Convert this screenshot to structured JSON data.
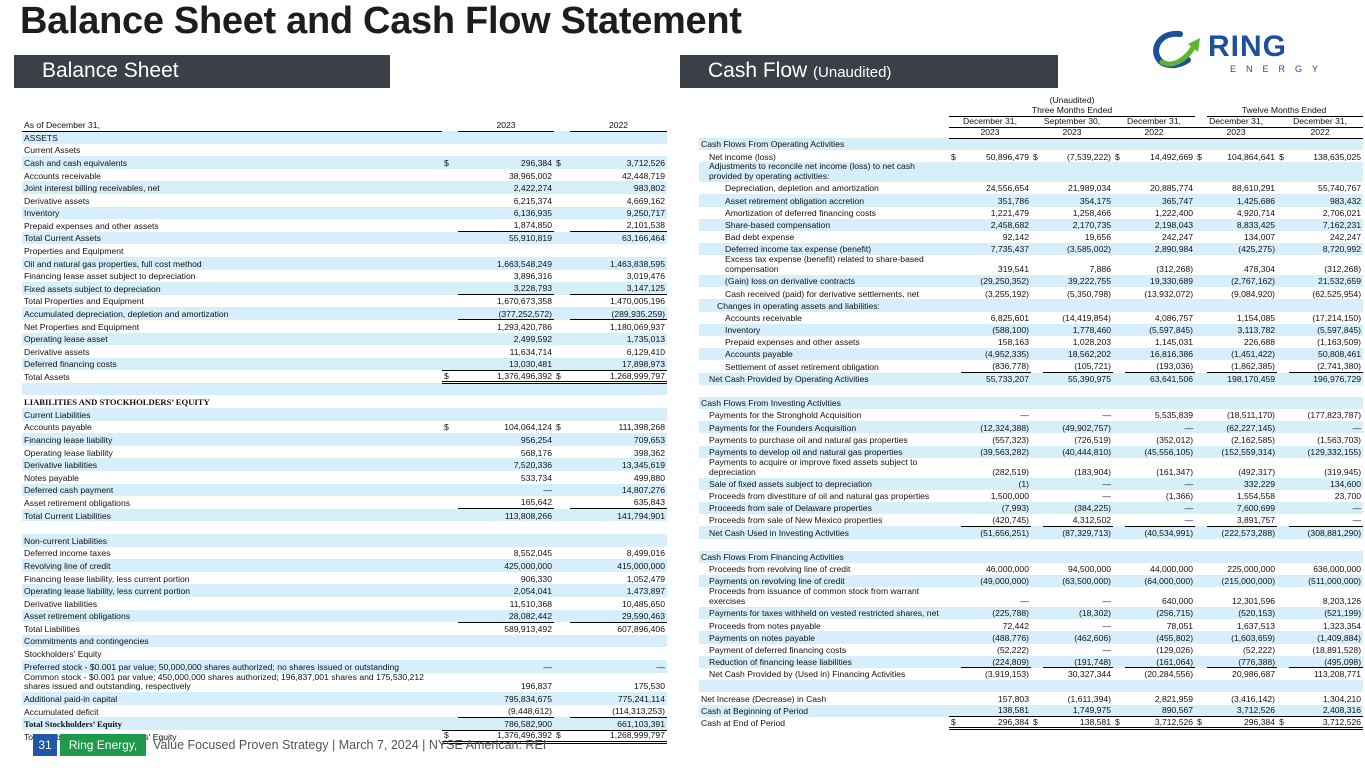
{
  "title": "Balance Sheet and Cash Flow Statement",
  "logo": {
    "text": "RING",
    "subtext": "ENERGY",
    "colors": {
      "blue": "#1f4e9c",
      "green": "#5cb531"
    }
  },
  "sections": {
    "balance_sheet": "Balance Sheet",
    "cash_flow": "Cash Flow",
    "cash_flow_note": "(Unaudited)"
  },
  "footer": {
    "page": "31",
    "company": "Ring Energy, Inc.",
    "tagline": "Value Focused Proven Strategy  | March 7, 2024 |  NYSE American: REI"
  },
  "balance_sheet": {
    "header": {
      "label": "As of December 31,",
      "years": [
        "2023",
        "2022"
      ]
    },
    "rows": [
      {
        "label": "ASSETS"
      },
      {
        "label": "Current Assets"
      },
      {
        "label": "Cash and cash equivalents",
        "values": [
          "296,384",
          "3,712,526"
        ],
        "dollar": true
      },
      {
        "label": "Accounts receivable",
        "values": [
          "38,965,002",
          "42,448,719"
        ]
      },
      {
        "label": "Joint interest billing receivables, net",
        "values": [
          "2,422,274",
          "983,802"
        ]
      },
      {
        "label": "Derivative assets",
        "values": [
          "6,215,374",
          "4,669,162"
        ]
      },
      {
        "label": "Inventory",
        "values": [
          "6,136,935",
          "9,250,717"
        ]
      },
      {
        "label": "Prepaid expenses and other assets",
        "values": [
          "1,874,850",
          "2,101,538"
        ]
      },
      {
        "label": "Total Current Assets",
        "values": [
          "55,910,819",
          "63,166,464"
        ],
        "kind": "total"
      },
      {
        "label": "Properties and Equipment"
      },
      {
        "label": "Oil and natural gas properties, full cost method",
        "values": [
          "1,663,548,249",
          "1,463,838,595"
        ]
      },
      {
        "label": "Financing lease asset subject to depreciation",
        "values": [
          "3,896,316",
          "3,019,476"
        ]
      },
      {
        "label": "Fixed assets subject to depreciation",
        "values": [
          "3,228,793",
          "3,147,125"
        ]
      },
      {
        "label": "Total Properties and Equipment",
        "values": [
          "1,670,673,358",
          "1,470,005,196"
        ],
        "kind": "total"
      },
      {
        "label": "Accumulated depreciation, depletion and amortization",
        "values": [
          "(377,252,572)",
          "(289,935,259)"
        ]
      },
      {
        "label": "Net Properties and Equipment",
        "values": [
          "1,293,420,786",
          "1,180,069,937"
        ],
        "kind": "total"
      },
      {
        "label": "Operating lease asset",
        "values": [
          "2,499,592",
          "1,735,013"
        ]
      },
      {
        "label": "Derivative assets",
        "values": [
          "11,634,714",
          "6,129,410"
        ]
      },
      {
        "label": "Deferred financing costs",
        "values": [
          "13,030,481",
          "17,898,973"
        ]
      },
      {
        "label": "Total Assets",
        "values": [
          "1,376,496,392",
          "1,268,999,797"
        ],
        "dollar": true,
        "kind": "grand"
      },
      {
        "label": ""
      },
      {
        "label": "LIABILITIES AND STOCKHOLDERS’ EQUITY",
        "kind": "serif"
      },
      {
        "label": "Current Liabilities"
      },
      {
        "label": "Accounts payable",
        "values": [
          "104,064,124",
          "111,398,268"
        ],
        "dollar": true
      },
      {
        "label": "Financing lease liability",
        "values": [
          "956,254",
          "709,653"
        ]
      },
      {
        "label": "Operating lease liability",
        "values": [
          "568,176",
          "398,362"
        ]
      },
      {
        "label": "Derivative liabilities",
        "values": [
          "7,520,336",
          "13,345,619"
        ]
      },
      {
        "label": "Notes payable",
        "values": [
          "533,734",
          "499,880"
        ]
      },
      {
        "label": "Deferred cash payment",
        "values": [
          "—",
          "14,807,276"
        ]
      },
      {
        "label": "Asset retirement obligations",
        "values": [
          "165,642",
          "635,843"
        ]
      },
      {
        "label": "Total Current Liabilities",
        "values": [
          "113,808,266",
          "141,794,901"
        ],
        "kind": "total"
      },
      {
        "label": ""
      },
      {
        "label": "Non-current Liabilities"
      },
      {
        "label": "Deferred income taxes",
        "values": [
          "8,552,045",
          "8,499,016"
        ]
      },
      {
        "label": "Revolving line of credit",
        "values": [
          "425,000,000",
          "415,000,000"
        ]
      },
      {
        "label": "Financing lease liability, less current portion",
        "values": [
          "906,330",
          "1,052,479"
        ]
      },
      {
        "label": "Operating lease liability, less current portion",
        "values": [
          "2,054,041",
          "1,473,897"
        ]
      },
      {
        "label": "Derivative liabilities",
        "values": [
          "11,510,368",
          "10,485,650"
        ]
      },
      {
        "label": "Asset retirement obligations",
        "values": [
          "28,082,442",
          "29,590,463"
        ]
      },
      {
        "label": "Total Liabilities",
        "values": [
          "589,913,492",
          "607,896,406"
        ],
        "kind": "total"
      },
      {
        "label": "Commitments and contingencies"
      },
      {
        "label": "Stockholders' Equity"
      },
      {
        "label": "Preferred stock - $0.001 par value; 50,000,000 shares authorized; no shares issued or outstanding",
        "values": [
          "—",
          "—"
        ]
      },
      {
        "label": "Common stock - $0.001 par value; 450,000,000 shares authorized; 196,837,001 shares and 175,530,212 shares issued and outstanding, respectively",
        "values": [
          "196,837",
          "175,530"
        ]
      },
      {
        "label": "Additional paid-in capital",
        "values": [
          "795,834,675",
          "775,241,114"
        ]
      },
      {
        "label": "Accumulated deficit",
        "values": [
          "(9,448,612)",
          "(114,313,253)"
        ]
      },
      {
        "label": "Total Stockholders’ Equity",
        "values": [
          "786,582,900",
          "661,103,391"
        ],
        "kind": "total-serif"
      },
      {
        "label": "Total Liabilities and Stockholders' Equity",
        "values": [
          "1,376,496,392",
          "1,268,999,797"
        ],
        "dollar": true,
        "kind": "grand"
      }
    ]
  },
  "cash_flow": {
    "header": {
      "unaudited": "(Unaudited)",
      "groups": [
        "Three Months Ended",
        "Twelve Months Ended"
      ],
      "periods": [
        "December 31,",
        "September 30,",
        "December 31,",
        "December 31,",
        "December 31,"
      ],
      "years": [
        "2023",
        "2023",
        "2022",
        "2023",
        "2022"
      ]
    },
    "rows": [
      {
        "label": "Cash Flows From Operating Activities",
        "level": 0
      },
      {
        "label": "Net income (loss)",
        "level": 1,
        "dollar": true,
        "values": [
          "50,896,479",
          "(7,539,222)",
          "14,492,669",
          "104,864,641",
          "138,635,025"
        ]
      },
      {
        "label": "Adjustments to reconcile net income (loss) to net cash provided by operating activities:",
        "level": 1
      },
      {
        "label": "Depreciation, depletion and amortization",
        "level": 3,
        "values": [
          "24,556,654",
          "21,989,034",
          "20,885,774",
          "88,610,291",
          "55,740,767"
        ]
      },
      {
        "label": "Asset retirement obligation accretion",
        "level": 3,
        "values": [
          "351,786",
          "354,175",
          "365,747",
          "1,425,686",
          "983,432"
        ]
      },
      {
        "label": "Amortization of deferred financing costs",
        "level": 3,
        "values": [
          "1,221,479",
          "1,258,466",
          "1,222,400",
          "4,920,714",
          "2,706,021"
        ]
      },
      {
        "label": "Share-based compensation",
        "level": 3,
        "values": [
          "2,458,682",
          "2,170,735",
          "2,198,043",
          "8,833,425",
          "7,162,231"
        ]
      },
      {
        "label": "Bad debt expense",
        "level": 3,
        "values": [
          "92,142",
          "19,656",
          "242,247",
          "134,007",
          "242,247"
        ]
      },
      {
        "label": "Deferred income tax expense (benefit)",
        "level": 3,
        "values": [
          "7,735,437",
          "(3,585,002)",
          "2,890,984",
          "(425,275)",
          "8,720,992"
        ]
      },
      {
        "label": "Excess tax expense (benefit) related to share-based compensation",
        "level": 3,
        "values": [
          "319,541",
          "7,886",
          "(312,268)",
          "478,304",
          "(312,268)"
        ]
      },
      {
        "label": "(Gain) loss on derivative contracts",
        "level": 3,
        "values": [
          "(29,250,352)",
          "39,222,755",
          "19,330,689",
          "(2,767,162)",
          "21,532,659"
        ]
      },
      {
        "label": "Cash received (paid) for derivative settlements, net",
        "level": 3,
        "values": [
          "(3,255,192)",
          "(5,350,798)",
          "(13,932,072)",
          "(9,084,920)",
          "(62,525,954)"
        ]
      },
      {
        "label": "Changes in operating assets and liabilities:",
        "level": 2
      },
      {
        "label": "Accounts receivable",
        "level": 3,
        "values": [
          "6,825,601",
          "(14,419,854)",
          "4,086,757",
          "1,154,085",
          "(17,214,150)"
        ]
      },
      {
        "label": "Inventory",
        "level": 3,
        "values": [
          "(588,100)",
          "1,778,460",
          "(5,597,845)",
          "3,113,782",
          "(5,597,845)"
        ]
      },
      {
        "label": "Prepaid expenses and other assets",
        "level": 3,
        "values": [
          "158,163",
          "1,028,203",
          "1,145,031",
          "226,688",
          "(1,163,509)"
        ]
      },
      {
        "label": "Accounts payable",
        "level": 3,
        "values": [
          "(4,952,335)",
          "18,562,202",
          "16,816,386",
          "(1,451,422)",
          "50,808,461"
        ]
      },
      {
        "label": "Settlement of asset retirement obligation",
        "level": 3,
        "values": [
          "(836,778)",
          "(105,721)",
          "(193,036)",
          "(1,862,385)",
          "(2,741,380)"
        ]
      },
      {
        "label": "Net Cash Provided by Operating Activities",
        "level": 1,
        "kind": "total",
        "values": [
          "55,733,207",
          "55,390,975",
          "63,641,506",
          "198,170,459",
          "196,976,729"
        ]
      },
      {
        "label": "",
        "level": 0
      },
      {
        "label": "Cash Flows From Investing Activities",
        "level": 0
      },
      {
        "label": "Payments for the Stronghold Acquisition",
        "level": 1,
        "values": [
          "—",
          "—",
          "5,535,839",
          "(18,511,170)",
          "(177,823,787)"
        ]
      },
      {
        "label": "Payments for the Founders Acquisition",
        "level": 1,
        "values": [
          "(12,324,388)",
          "(49,902,757)",
          "—",
          "(62,227,145)",
          "—"
        ]
      },
      {
        "label": "Payments to purchase oil and natural gas properties",
        "level": 1,
        "values": [
          "(557,323)",
          "(726,519)",
          "(352,012)",
          "(2,162,585)",
          "(1,563,703)"
        ]
      },
      {
        "label": "Payments to develop oil and natural gas properties",
        "level": 1,
        "values": [
          "(39,563,282)",
          "(40,444,810)",
          "(45,556,105)",
          "(152,559,314)",
          "(129,332,155)"
        ]
      },
      {
        "label": "Payments to acquire or improve fixed assets subject to depreciation",
        "level": 1,
        "values": [
          "(282,519)",
          "(183,904)",
          "(161,347)",
          "(492,317)",
          "(319,945)"
        ]
      },
      {
        "label": "Sale of fixed assets subject to depreciation",
        "level": 1,
        "values": [
          "(1)",
          "—",
          "—",
          "332,229",
          "134,600"
        ]
      },
      {
        "label": "Proceeds from divestiture of oil and natural gas properties",
        "level": 1,
        "values": [
          "1,500,000",
          "—",
          "(1,366)",
          "1,554,558",
          "23,700"
        ]
      },
      {
        "label": "Proceeds from sale of Delaware properties",
        "level": 1,
        "values": [
          "(7,993)",
          "(384,225)",
          "—",
          "7,600,699",
          "—"
        ]
      },
      {
        "label": "Proceeds from sale of New Mexico properties",
        "level": 1,
        "values": [
          "(420,745)",
          "4,312,502",
          "—",
          "3,891,757",
          "—"
        ]
      },
      {
        "label": "Net Cash Used in Investing Activities",
        "level": 1,
        "kind": "total",
        "values": [
          "(51,656,251)",
          "(87,329,713)",
          "(40,534,991)",
          "(222,573,288)",
          "(308,881,290)"
        ]
      },
      {
        "label": "",
        "level": 0
      },
      {
        "label": "Cash Flows From Financing Activities",
        "level": 0
      },
      {
        "label": "Proceeds from revolving line of credit",
        "level": 1,
        "values": [
          "46,000,000",
          "94,500,000",
          "44,000,000",
          "225,000,000",
          "636,000,000"
        ]
      },
      {
        "label": "Payments on revolving line of credit",
        "level": 1,
        "values": [
          "(49,000,000)",
          "(63,500,000)",
          "(64,000,000)",
          "(215,000,000)",
          "(511,000,000)"
        ]
      },
      {
        "label": "Proceeds from issuance of common stock from warrant exercises",
        "level": 1,
        "values": [
          "—",
          "—",
          "640,000",
          "12,301,596",
          "8,203,126"
        ]
      },
      {
        "label": "Payments for taxes withheld on vested restricted shares, net",
        "level": 1,
        "values": [
          "(225,788)",
          "(18,302)",
          "(256,715)",
          "(520,153)",
          "(521,199)"
        ]
      },
      {
        "label": "Proceeds from notes payable",
        "level": 1,
        "values": [
          "72,442",
          "—",
          "78,051",
          "1,637,513",
          "1,323,354"
        ]
      },
      {
        "label": "Payments on notes payable",
        "level": 1,
        "values": [
          "(488,776)",
          "(462,606)",
          "(455,802)",
          "(1,603,659)",
          "(1,409,884)"
        ]
      },
      {
        "label": "Payment of deferred financing costs",
        "level": 1,
        "values": [
          "(52,222)",
          "—",
          "(129,026)",
          "(52,222)",
          "(18,891,528)"
        ]
      },
      {
        "label": "Reduction of financing lease liabilities",
        "level": 1,
        "values": [
          "(224,809)",
          "(191,748)",
          "(161,064)",
          "(776,388)",
          "(495,098)"
        ]
      },
      {
        "label": "Net Cash Provided by (Used in) Financing Activities",
        "level": 1,
        "kind": "total",
        "values": [
          "(3,919,153)",
          "30,327,344",
          "(20,284,556)",
          "20,986,687",
          "113,208,771"
        ]
      },
      {
        "label": "",
        "level": 0
      },
      {
        "label": "Net Increase (Decrease) in Cash",
        "level": 0,
        "values": [
          "157,803",
          "(1,611,394)",
          "2,821,959",
          "(3,416,142)",
          "1,304,210"
        ]
      },
      {
        "label": "Cash at Beginning of Period",
        "level": 0,
        "values": [
          "138,581",
          "1,749,975",
          "890,567",
          "3,712,526",
          "2,408,316"
        ]
      },
      {
        "label": "Cash at End of Period",
        "level": 0,
        "dollar": true,
        "kind": "grand",
        "values": [
          "296,384",
          "138,581",
          "3,712,526",
          "296,384",
          "3,712,526"
        ]
      }
    ]
  }
}
